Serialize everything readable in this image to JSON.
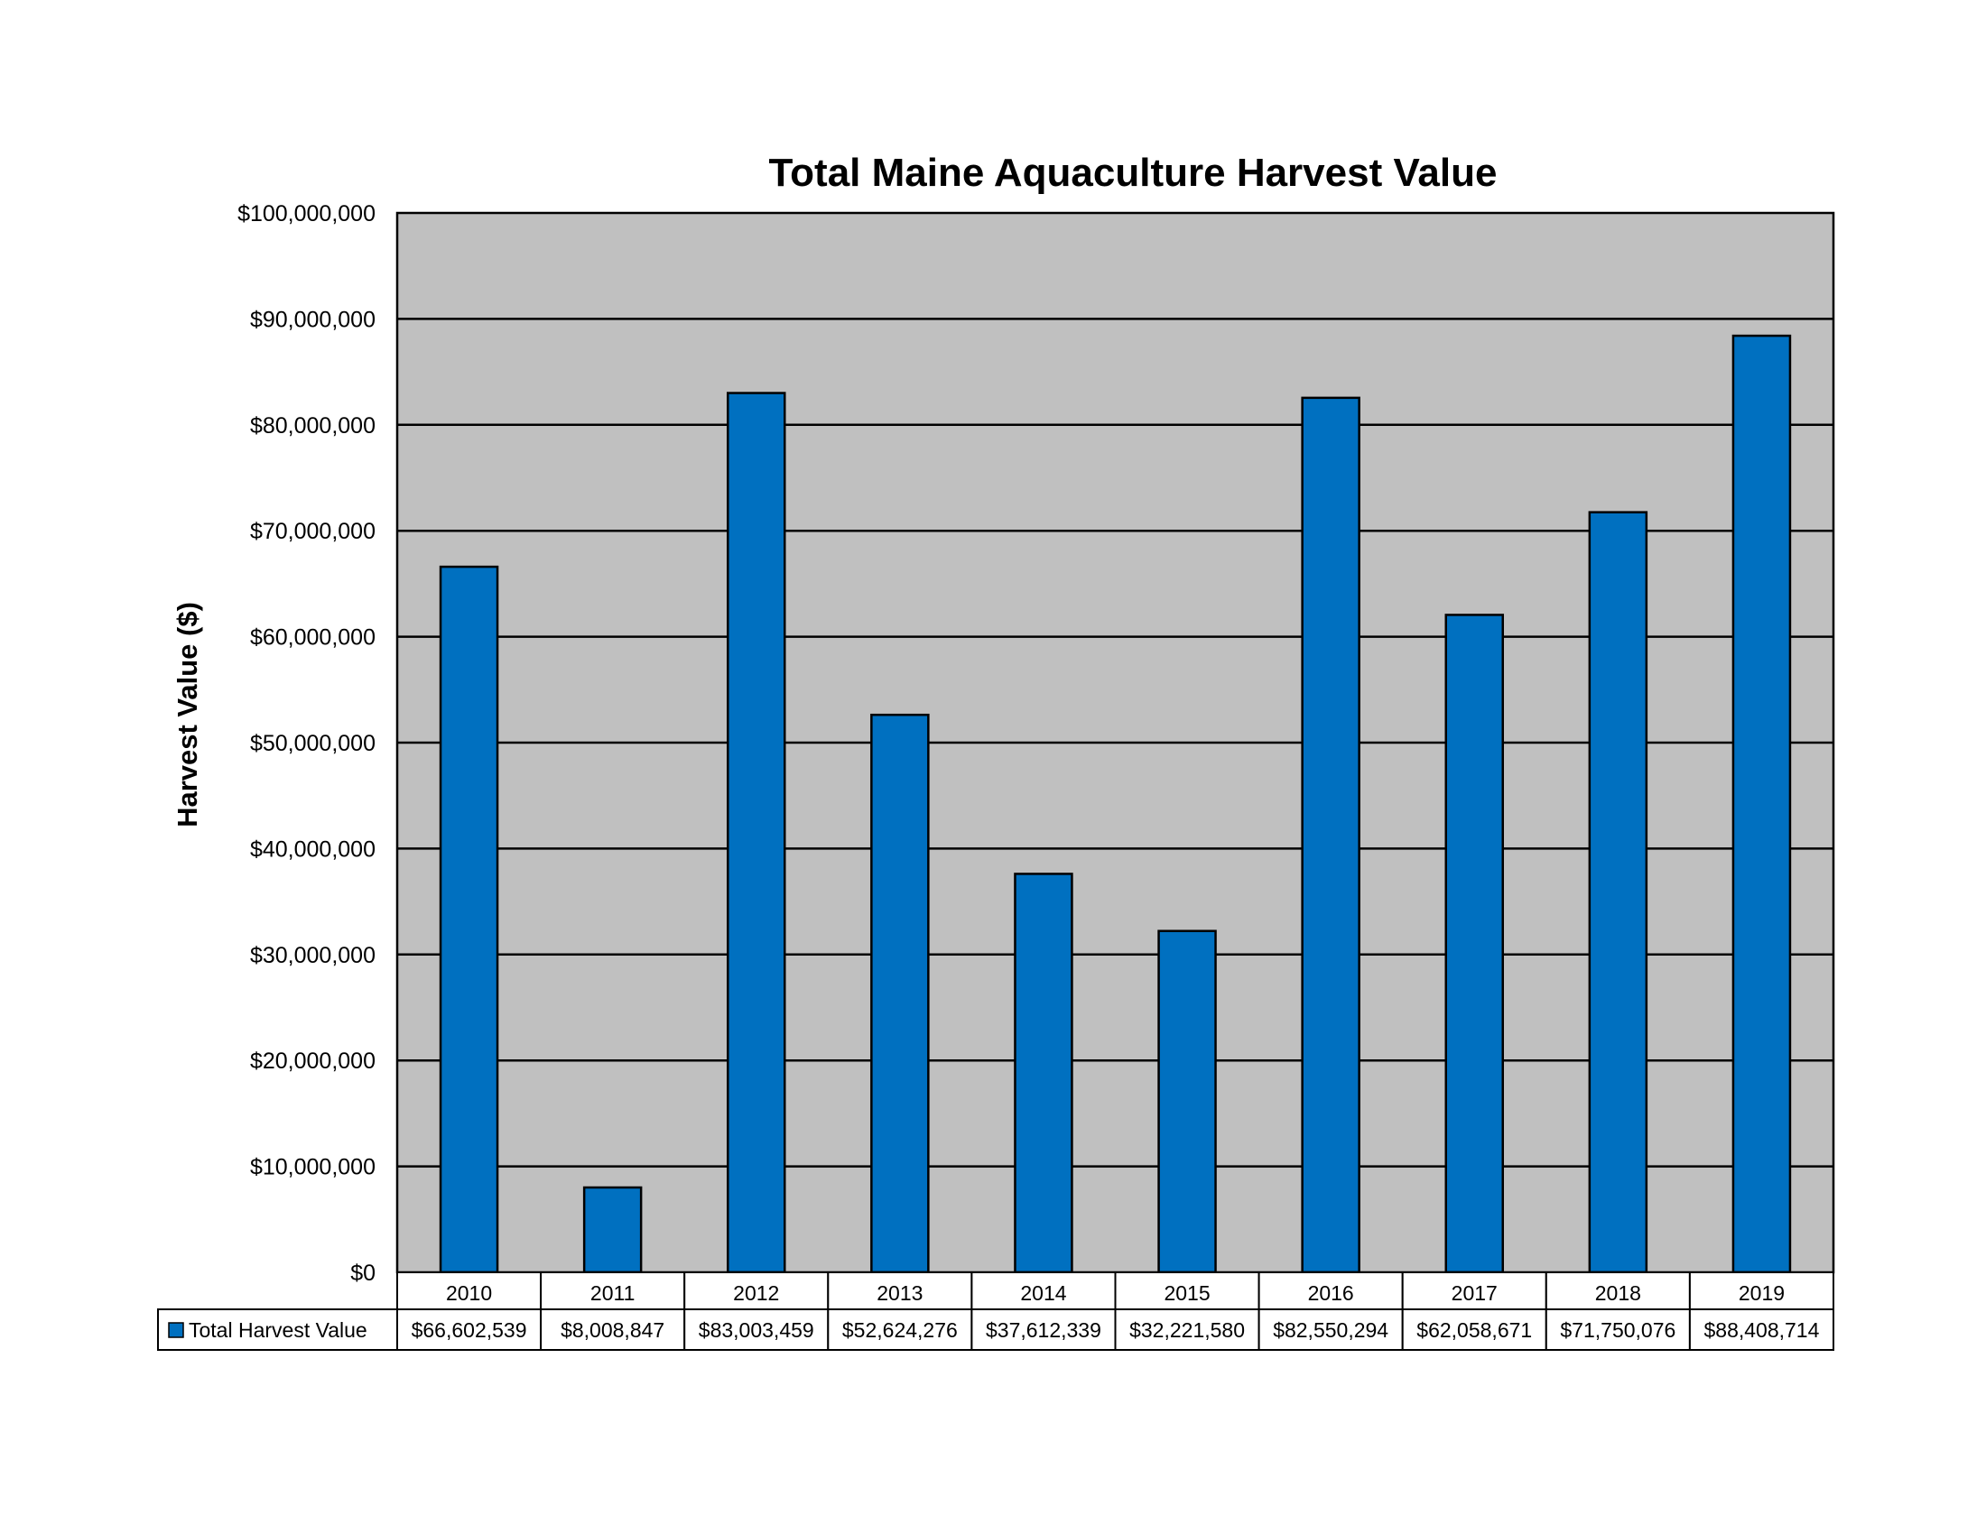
{
  "chart_data": {
    "type": "bar",
    "title": "Total Maine Aquaculture Harvest Value",
    "ylabel": "Harvest Value ($)",
    "xlabel": "",
    "categories": [
      "2010",
      "2011",
      "2012",
      "2013",
      "2014",
      "2015",
      "2016",
      "2017",
      "2018",
      "2019"
    ],
    "series": [
      {
        "name": "Total Harvest Value",
        "values": [
          66602539,
          8008847,
          83003459,
          52624276,
          37612339,
          32221580,
          82550294,
          62058671,
          71750076,
          88408714
        ],
        "value_labels": [
          "$66,602,539",
          "$8,008,847",
          "$83,003,459",
          "$52,624,276",
          "$37,612,339",
          "$32,221,580",
          "$82,550,294",
          "$62,058,671",
          "$71,750,076",
          "$88,408,714"
        ],
        "color": "#0070C0"
      }
    ],
    "ylim": [
      0,
      100000000
    ],
    "yticks": [
      "$0",
      "$10,000,000",
      "$20,000,000",
      "$30,000,000",
      "$40,000,000",
      "$50,000,000",
      "$60,000,000",
      "$70,000,000",
      "$80,000,000",
      "$90,000,000",
      "$100,000,000"
    ],
    "grid": true,
    "plot_background": "#C0C0C0",
    "legend": "data-table-below"
  }
}
